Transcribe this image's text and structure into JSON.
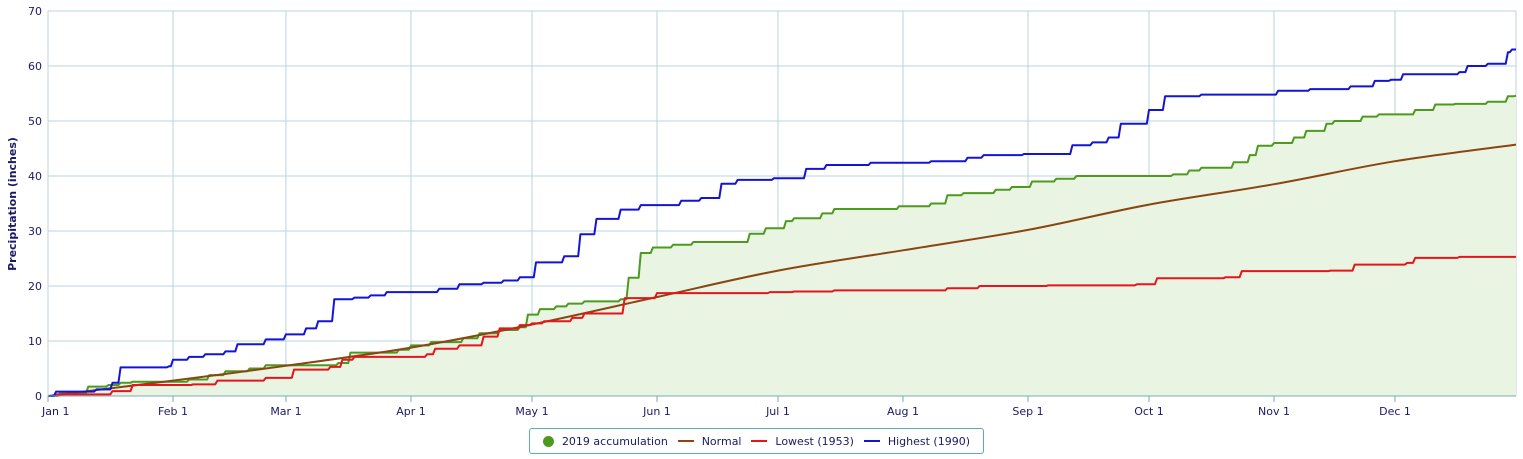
{
  "chart_data": {
    "type": "line",
    "title": "",
    "xlabel": "",
    "ylabel": "Precipitation (inches)",
    "ylim": [
      0,
      70
    ],
    "xlim": [
      "2019-01-01",
      "2019-12-31"
    ],
    "grid": true,
    "legend_position": "bottom-center",
    "x_ticks": [
      "Jan 1",
      "Feb 1",
      "Mar 1",
      "Apr 1",
      "May 1",
      "Jun 1",
      "Jul 1",
      "Aug 1",
      "Sep 1",
      "Oct 1",
      "Nov 1",
      "Dec 1"
    ],
    "y_ticks": [
      0,
      10,
      20,
      30,
      40,
      50,
      60,
      70
    ],
    "series": [
      {
        "name": "2019 accumulation",
        "color": "#4c9a1e",
        "fill": "#e9f4e2",
        "style": "step-area",
        "points": [
          [
            "2019-01-01",
            0
          ],
          [
            "2019-01-04",
            0.6
          ],
          [
            "2019-01-11",
            1.7
          ],
          [
            "2019-01-16",
            2.0
          ],
          [
            "2019-01-19",
            2.4
          ],
          [
            "2019-01-22",
            2.6
          ],
          [
            "2019-02-05",
            3.0
          ],
          [
            "2019-02-10",
            3.8
          ],
          [
            "2019-02-14",
            4.5
          ],
          [
            "2019-02-20",
            5.0
          ],
          [
            "2019-02-24",
            5.6
          ],
          [
            "2019-03-14",
            6.0
          ],
          [
            "2019-03-17",
            7.9
          ],
          [
            "2019-03-29",
            8.4
          ],
          [
            "2019-04-01",
            9.2
          ],
          [
            "2019-04-06",
            9.8
          ],
          [
            "2019-04-14",
            10.5
          ],
          [
            "2019-04-18",
            11.4
          ],
          [
            "2019-04-23",
            12.0
          ],
          [
            "2019-04-28",
            12.5
          ],
          [
            "2019-04-30",
            14.8
          ],
          [
            "2019-05-03",
            15.8
          ],
          [
            "2019-05-07",
            16.3
          ],
          [
            "2019-05-10",
            16.8
          ],
          [
            "2019-05-14",
            17.2
          ],
          [
            "2019-05-23",
            17.6
          ],
          [
            "2019-05-25",
            21.5
          ],
          [
            "2019-05-28",
            26.0
          ],
          [
            "2019-05-31",
            27.0
          ],
          [
            "2019-06-05",
            27.5
          ],
          [
            "2019-06-10",
            28.0
          ],
          [
            "2019-06-24",
            29.5
          ],
          [
            "2019-06-28",
            30.5
          ],
          [
            "2019-07-03",
            31.8
          ],
          [
            "2019-07-05",
            32.3
          ],
          [
            "2019-07-12",
            33.2
          ],
          [
            "2019-07-15",
            34.0
          ],
          [
            "2019-07-31",
            34.5
          ],
          [
            "2019-08-08",
            35.0
          ],
          [
            "2019-08-12",
            36.5
          ],
          [
            "2019-08-16",
            36.9
          ],
          [
            "2019-08-24",
            37.5
          ],
          [
            "2019-08-28",
            38.0
          ],
          [
            "2019-09-02",
            39.0
          ],
          [
            "2019-09-08",
            39.5
          ],
          [
            "2019-09-13",
            40.0
          ],
          [
            "2019-10-07",
            40.3
          ],
          [
            "2019-10-11",
            41.0
          ],
          [
            "2019-10-14",
            41.5
          ],
          [
            "2019-10-22",
            42.5
          ],
          [
            "2019-10-26",
            43.8
          ],
          [
            "2019-10-28",
            45.5
          ],
          [
            "2019-11-01",
            46.0
          ],
          [
            "2019-11-06",
            47.0
          ],
          [
            "2019-11-09",
            48.2
          ],
          [
            "2019-11-14",
            49.5
          ],
          [
            "2019-11-16",
            50.0
          ],
          [
            "2019-11-23",
            50.8
          ],
          [
            "2019-11-27",
            51.2
          ],
          [
            "2019-12-06",
            52.0
          ],
          [
            "2019-12-11",
            53.0
          ],
          [
            "2019-12-16",
            53.1
          ],
          [
            "2019-12-24",
            53.5
          ],
          [
            "2019-12-29",
            54.5
          ],
          [
            "2019-12-31",
            54.6
          ]
        ]
      },
      {
        "name": "Normal",
        "color": "#8b4513",
        "style": "smooth",
        "points": [
          [
            "2019-01-01",
            0
          ],
          [
            "2019-02-01",
            2.8
          ],
          [
            "2019-03-01",
            5.5
          ],
          [
            "2019-04-01",
            8.8
          ],
          [
            "2019-05-01",
            13.0
          ],
          [
            "2019-06-01",
            18.0
          ],
          [
            "2019-07-01",
            22.8
          ],
          [
            "2019-08-01",
            26.5
          ],
          [
            "2019-09-01",
            30.2
          ],
          [
            "2019-10-01",
            34.8
          ],
          [
            "2019-11-01",
            38.5
          ],
          [
            "2019-12-01",
            42.7
          ],
          [
            "2019-12-31",
            45.7
          ]
        ]
      },
      {
        "name": "Lowest (1953)",
        "color": "#e8141b",
        "style": "step",
        "points": [
          [
            "2019-01-01",
            0
          ],
          [
            "2019-01-03",
            0.3
          ],
          [
            "2019-01-17",
            0.9
          ],
          [
            "2019-01-22",
            2.0
          ],
          [
            "2019-02-06",
            2.1
          ],
          [
            "2019-02-12",
            2.8
          ],
          [
            "2019-02-24",
            3.3
          ],
          [
            "2019-03-03",
            4.8
          ],
          [
            "2019-03-12",
            5.3
          ],
          [
            "2019-03-15",
            6.6
          ],
          [
            "2019-03-18",
            7.1
          ],
          [
            "2019-04-05",
            7.6
          ],
          [
            "2019-04-07",
            8.6
          ],
          [
            "2019-04-13",
            9.2
          ],
          [
            "2019-04-19",
            10.8
          ],
          [
            "2019-04-23",
            12.3
          ],
          [
            "2019-04-28",
            12.9
          ],
          [
            "2019-05-01",
            13.2
          ],
          [
            "2019-05-04",
            13.6
          ],
          [
            "2019-05-11",
            14.2
          ],
          [
            "2019-05-14",
            15.0
          ],
          [
            "2019-05-24",
            17.8
          ],
          [
            "2019-06-01",
            18.7
          ],
          [
            "2019-06-29",
            18.9
          ],
          [
            "2019-07-05",
            19.0
          ],
          [
            "2019-07-15",
            19.2
          ],
          [
            "2019-08-12",
            19.6
          ],
          [
            "2019-08-20",
            20.0
          ],
          [
            "2019-09-06",
            20.1
          ],
          [
            "2019-09-28",
            20.3
          ],
          [
            "2019-10-03",
            21.4
          ],
          [
            "2019-10-20",
            21.6
          ],
          [
            "2019-10-24",
            22.7
          ],
          [
            "2019-11-15",
            22.8
          ],
          [
            "2019-11-21",
            23.9
          ],
          [
            "2019-12-04",
            24.2
          ],
          [
            "2019-12-06",
            25.1
          ],
          [
            "2019-12-17",
            25.3
          ],
          [
            "2019-12-31",
            25.3
          ]
        ]
      },
      {
        "name": "Highest (1990)",
        "color": "#1414d8",
        "style": "step",
        "points": [
          [
            "2019-01-01",
            0
          ],
          [
            "2019-01-03",
            0.8
          ],
          [
            "2019-01-13",
            1.2
          ],
          [
            "2019-01-17",
            2.4
          ],
          [
            "2019-01-19",
            5.2
          ],
          [
            "2019-01-31",
            5.4
          ],
          [
            "2019-02-01",
            6.6
          ],
          [
            "2019-02-05",
            7.1
          ],
          [
            "2019-02-09",
            7.6
          ],
          [
            "2019-02-14",
            8.1
          ],
          [
            "2019-02-17",
            9.4
          ],
          [
            "2019-02-24",
            10.3
          ],
          [
            "2019-03-01",
            11.2
          ],
          [
            "2019-03-06",
            12.3
          ],
          [
            "2019-03-09",
            13.6
          ],
          [
            "2019-03-13",
            17.6
          ],
          [
            "2019-03-18",
            17.9
          ],
          [
            "2019-03-22",
            18.3
          ],
          [
            "2019-03-26",
            18.9
          ],
          [
            "2019-04-08",
            19.5
          ],
          [
            "2019-04-13",
            20.3
          ],
          [
            "2019-04-19",
            20.6
          ],
          [
            "2019-04-24",
            21.0
          ],
          [
            "2019-04-28",
            21.6
          ],
          [
            "2019-05-02",
            24.3
          ],
          [
            "2019-05-09",
            25.4
          ],
          [
            "2019-05-13",
            29.4
          ],
          [
            "2019-05-17",
            32.2
          ],
          [
            "2019-05-23",
            33.9
          ],
          [
            "2019-05-28",
            34.7
          ],
          [
            "2019-06-07",
            35.5
          ],
          [
            "2019-06-12",
            36.0
          ],
          [
            "2019-06-17",
            38.6
          ],
          [
            "2019-06-21",
            39.3
          ],
          [
            "2019-06-30",
            39.6
          ],
          [
            "2019-07-08",
            41.3
          ],
          [
            "2019-07-13",
            42.0
          ],
          [
            "2019-07-24",
            42.4
          ],
          [
            "2019-08-08",
            42.7
          ],
          [
            "2019-08-17",
            43.3
          ],
          [
            "2019-08-21",
            43.8
          ],
          [
            "2019-08-31",
            44.0
          ],
          [
            "2019-09-12",
            45.6
          ],
          [
            "2019-09-17",
            46.1
          ],
          [
            "2019-09-21",
            47.0
          ],
          [
            "2019-09-24",
            49.5
          ],
          [
            "2019-10-01",
            52.0
          ],
          [
            "2019-10-05",
            54.5
          ],
          [
            "2019-10-14",
            54.8
          ],
          [
            "2019-11-02",
            55.5
          ],
          [
            "2019-11-10",
            55.8
          ],
          [
            "2019-11-20",
            56.3
          ],
          [
            "2019-11-26",
            57.3
          ],
          [
            "2019-11-30",
            57.5
          ],
          [
            "2019-12-03",
            58.5
          ],
          [
            "2019-12-17",
            58.9
          ],
          [
            "2019-12-19",
            60.0
          ],
          [
            "2019-12-24",
            60.4
          ],
          [
            "2019-12-29",
            62.5
          ],
          [
            "2019-12-30",
            63.0
          ],
          [
            "2019-12-31",
            63.0
          ]
        ]
      }
    ]
  }
}
